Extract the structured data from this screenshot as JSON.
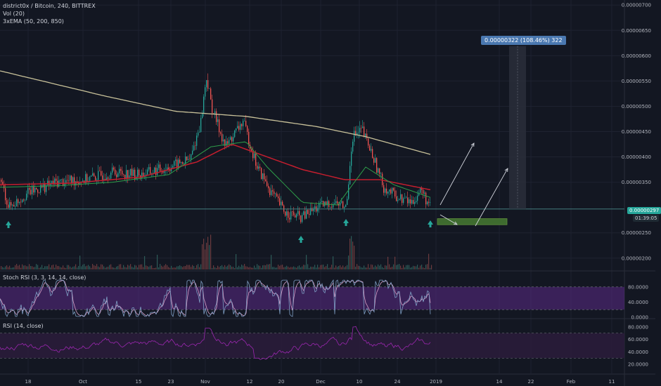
{
  "header": {
    "symbol_line": "district0x / Bitcoin, 240, BITTREX",
    "vol_label": "Vol (20)",
    "ema_label": "3xEMA (50, 200, 850)"
  },
  "panes": {
    "stoch_label": "Stoch RSI (3, 3, 14, 14, close)",
    "rsi_label": "RSI (14, close)"
  },
  "price_tag": {
    "value": "0.00000297",
    "countdown": "01:39:05",
    "color": "#26a69a"
  },
  "measure_badge": {
    "text": "0.00000322 (108.46%) 322"
  },
  "colors": {
    "background": "#131722",
    "up": "#26a69a",
    "down": "#ef5350",
    "ema50": "#2e9e4a",
    "ema200": "#c41e2e",
    "ema850": "#c9c29a",
    "osc_band": "#5b2a86",
    "stoch_k": "#7e9ec4",
    "stoch_d": "#d8a0c8",
    "rsi_line": "#9c27b0",
    "target_box": "#3e6b2f",
    "arrow_marker": "#26a69a"
  },
  "chart_data": {
    "type": "candlestick",
    "price_axis_ticks": [
      "0.00000700",
      "0.00000650",
      "0.00000600",
      "0.00000550",
      "0.00000500",
      "0.00000450",
      "0.00000400",
      "0.00000350",
      "0.00000250",
      "0.00000200"
    ],
    "stoch_axis_ticks": [
      "80.0000",
      "40.0000",
      "0.0000"
    ],
    "rsi_axis_ticks": [
      "80.0000",
      "60.0000",
      "40.0000",
      "20.0000"
    ],
    "time_axis_ticks": [
      "18",
      "Oct",
      "15",
      "23",
      "Nov",
      "12",
      "20",
      "Dec",
      "10",
      "24",
      "2019",
      "14",
      "22",
      "Feb",
      "11"
    ],
    "price_range": [
      1.9e-06,
      7.1e-06
    ],
    "price_path": [
      [
        0,
        3.55e-06
      ],
      [
        12,
        3e-06
      ],
      [
        40,
        3.3e-06
      ],
      [
        80,
        3.5e-06
      ],
      [
        120,
        3.55e-06
      ],
      [
        160,
        3.7e-06
      ],
      [
        200,
        3.65e-06
      ],
      [
        240,
        3.8e-06
      ],
      [
        270,
        3.95e-06
      ],
      [
        285,
        4.7e-06
      ],
      [
        293,
        5.6e-06
      ],
      [
        300,
        5e-06
      ],
      [
        320,
        4.2e-06
      ],
      [
        345,
        4.7e-06
      ],
      [
        365,
        3.8e-06
      ],
      [
        385,
        3.3e-06
      ],
      [
        405,
        2.9e-06
      ],
      [
        428,
        2.8e-06
      ],
      [
        450,
        3e-06
      ],
      [
        475,
        3.1e-06
      ],
      [
        492,
        3e-06
      ],
      [
        500,
        4.4e-06
      ],
      [
        515,
        4.5e-06
      ],
      [
        530,
        4e-06
      ],
      [
        545,
        3.4e-06
      ],
      [
        565,
        3.2e-06
      ],
      [
        585,
        3.1e-06
      ],
      [
        598,
        3.35e-06
      ],
      [
        612,
        2.97e-06
      ]
    ],
    "ema50_path": [
      [
        0,
        3.4e-06
      ],
      [
        80,
        3.43e-06
      ],
      [
        160,
        3.5e-06
      ],
      [
        240,
        3.65e-06
      ],
      [
        300,
        4.2e-06
      ],
      [
        350,
        4.3e-06
      ],
      [
        380,
        3.8e-06
      ],
      [
        430,
        3.1e-06
      ],
      [
        480,
        3.05e-06
      ],
      [
        520,
        3.8e-06
      ],
      [
        560,
        3.45e-06
      ],
      [
        612,
        3.2e-06
      ]
    ],
    "ema200_path": [
      [
        0,
        3.45e-06
      ],
      [
        100,
        3.48e-06
      ],
      [
        200,
        3.6e-06
      ],
      [
        280,
        3.9e-06
      ],
      [
        330,
        4.25e-06
      ],
      [
        370,
        4.05e-06
      ],
      [
        430,
        3.75e-06
      ],
      [
        490,
        3.55e-06
      ],
      [
        540,
        3.55e-06
      ],
      [
        612,
        3.35e-06
      ]
    ],
    "ema850_path": [
      [
        0,
        5.7e-06
      ],
      [
        60,
        5.5e-06
      ],
      [
        150,
        5.2e-06
      ],
      [
        250,
        4.9e-06
      ],
      [
        350,
        4.8e-06
      ],
      [
        450,
        4.6e-06
      ],
      [
        520,
        4.4e-06
      ],
      [
        612,
        4.05e-06
      ]
    ],
    "current_price": 2.97e-06,
    "measure_range": {
      "from": 2.97e-06,
      "to": 6.19e-06
    },
    "target_zone": {
      "low": 2.66e-06,
      "high": 2.78e-06
    }
  }
}
